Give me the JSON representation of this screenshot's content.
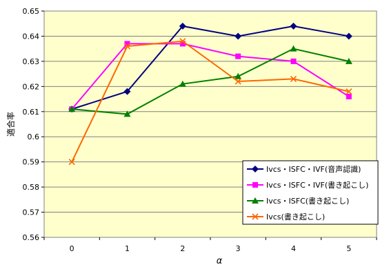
{
  "chart_data": {
    "type": "line",
    "title": "",
    "xlabel": "α",
    "ylabel": "適合率",
    "x": [
      0,
      1,
      2,
      3,
      4,
      5
    ],
    "xticks": [
      "0",
      "1",
      "2",
      "3",
      "4",
      "5"
    ],
    "ylim": [
      0.56,
      0.65
    ],
    "yticks": [
      "0.56",
      "0.57",
      "0.58",
      "0.59",
      "0.6",
      "0.61",
      "0.62",
      "0.63",
      "0.64",
      "0.65"
    ],
    "grid": true,
    "legend_position": "bottom-right",
    "plot_background": "#ffffcc",
    "series": [
      {
        "name": "Ivcs・ISFC・IVF(音声認識)",
        "values": [
          0.611,
          0.618,
          0.644,
          0.64,
          0.644,
          0.64
        ],
        "color": "#000080",
        "marker": "diamond"
      },
      {
        "name": "Ivcs・ISFC・IVF(書き起こし)",
        "values": [
          0.611,
          0.637,
          0.637,
          0.632,
          0.63,
          0.616
        ],
        "color": "#ff00ff",
        "marker": "square"
      },
      {
        "name": "Ivcs・ISFC(書き起こし)",
        "values": [
          0.611,
          0.609,
          0.621,
          0.624,
          0.635,
          0.63
        ],
        "color": "#008000",
        "marker": "triangle"
      },
      {
        "name": "Ivcs(書き起こし)",
        "values": [
          0.59,
          0.636,
          0.638,
          0.622,
          0.623,
          0.618
        ],
        "color": "#ff6600",
        "marker": "x"
      }
    ]
  }
}
